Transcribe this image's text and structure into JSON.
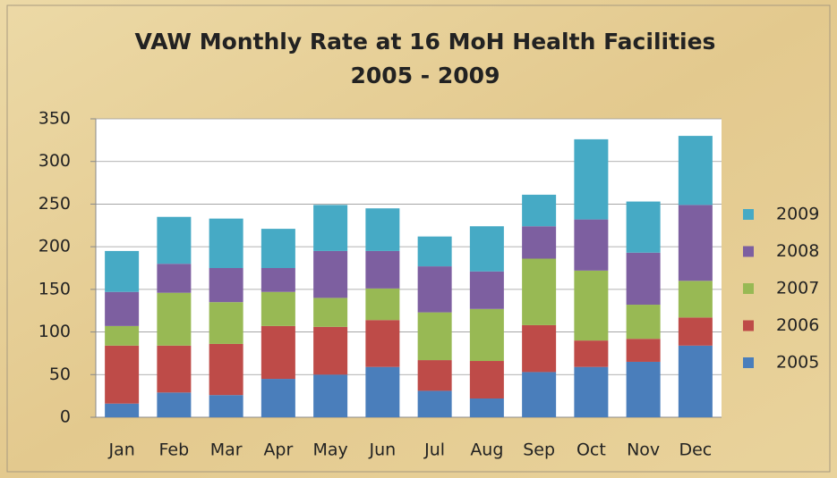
{
  "chart_data": {
    "type": "stacked_bar",
    "title": "VAW Monthly Rate at 16 MoH Health Facilities",
    "subtitle": "2005 - 2009",
    "categories": [
      "Jan",
      "Feb",
      "Mar",
      "Apr",
      "May",
      "Jun",
      "Jul",
      "Aug",
      "Sep",
      "Oct",
      "Nov",
      "Dec"
    ],
    "series": [
      {
        "name": "2005",
        "color": "#4a7ebb",
        "values": [
          16,
          29,
          26,
          45,
          50,
          59,
          31,
          22,
          53,
          59,
          65,
          84
        ]
      },
      {
        "name": "2006",
        "color": "#be4b48",
        "values": [
          68,
          55,
          60,
          62,
          56,
          55,
          36,
          44,
          55,
          31,
          27,
          33
        ]
      },
      {
        "name": "2007",
        "color": "#98b954",
        "values": [
          23,
          62,
          49,
          40,
          34,
          37,
          56,
          61,
          78,
          82,
          40,
          43
        ]
      },
      {
        "name": "2008",
        "color": "#7d5fa0",
        "values": [
          40,
          34,
          40,
          28,
          55,
          44,
          54,
          44,
          38,
          60,
          61,
          89
        ]
      },
      {
        "name": "2009",
        "color": "#46aac5",
        "values": [
          48,
          55,
          58,
          46,
          54,
          50,
          35,
          53,
          37,
          94,
          60,
          81
        ]
      }
    ],
    "ylim": [
      0,
      350
    ],
    "yticks": [
      0,
      50,
      100,
      150,
      200,
      250,
      300,
      350
    ],
    "grid": true
  }
}
